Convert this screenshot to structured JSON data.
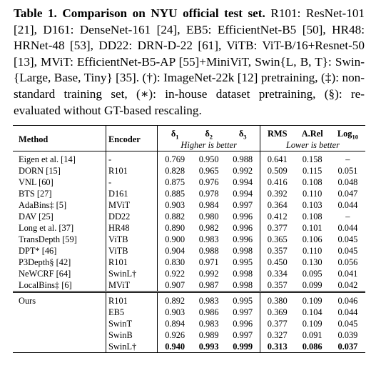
{
  "caption": {
    "label": "Table 1.",
    "title": "Comparison on NYU official test set.",
    "text": "R101: ResNet-101 [21], D161: DenseNet-161 [24], EB5: EfficientNet-B5 [50], HR48: HRNet-48 [53], DD22: DRN-D-22 [61], ViTB: ViT-B/16+Resnet-50 [13], MViT: EfficientNet-B5-AP [55]+MiniViT, Swin{L, B, T}: Swin-{Large, Base, Tiny} [35]. (†): ImageNet-22k [12] pretraining, (‡): non-standard training set, (∗): in-house dataset pretraining, (§): re-evaluated without GT-based rescaling."
  },
  "table": {
    "headers": {
      "method": "Method",
      "encoder": "Encoder",
      "d1": "δ1",
      "d2": "δ2",
      "d3": "δ3",
      "rms": "RMS",
      "arel": "A.Rel",
      "log10": "Log10",
      "higher": "Higher is better",
      "lower": "Lower is better"
    },
    "rows": [
      {
        "method": "Eigen et al. [14]",
        "encoder": "-",
        "d1": "0.769",
        "d2": "0.950",
        "d3": "0.988",
        "rms": "0.641",
        "arel": "0.158",
        "log10": "–"
      },
      {
        "method": "DORN [15]",
        "encoder": "R101",
        "d1": "0.828",
        "d2": "0.965",
        "d3": "0.992",
        "rms": "0.509",
        "arel": "0.115",
        "log10": "0.051"
      },
      {
        "method": "VNL [60]",
        "encoder": "-",
        "d1": "0.875",
        "d2": "0.976",
        "d3": "0.994",
        "rms": "0.416",
        "arel": "0.108",
        "log10": "0.048"
      },
      {
        "method": "BTS [27]",
        "encoder": "D161",
        "d1": "0.885",
        "d2": "0.978",
        "d3": "0.994",
        "rms": "0.392",
        "arel": "0.110",
        "log10": "0.047"
      },
      {
        "method": "AdaBins‡ [5]",
        "encoder": "MViT",
        "d1": "0.903",
        "d2": "0.984",
        "d3": "0.997",
        "rms": "0.364",
        "arel": "0.103",
        "log10": "0.044"
      },
      {
        "method": "DAV [25]",
        "encoder": "DD22",
        "d1": "0.882",
        "d2": "0.980",
        "d3": "0.996",
        "rms": "0.412",
        "arel": "0.108",
        "log10": "–"
      },
      {
        "method": "Long et al. [37]",
        "encoder": "HR48",
        "d1": "0.890",
        "d2": "0.982",
        "d3": "0.996",
        "rms": "0.377",
        "arel": "0.101",
        "log10": "0.044"
      },
      {
        "method": "TransDepth [59]",
        "encoder": "ViTB",
        "d1": "0.900",
        "d2": "0.983",
        "d3": "0.996",
        "rms": "0.365",
        "arel": "0.106",
        "log10": "0.045"
      },
      {
        "method": "DPT* [46]",
        "encoder": "ViTB",
        "d1": "0.904",
        "d2": "0.988",
        "d3": "0.998",
        "rms": "0.357",
        "arel": "0.110",
        "log10": "0.045"
      },
      {
        "method": "P3Depth§ [42]",
        "encoder": "R101",
        "d1": "0.830",
        "d2": "0.971",
        "d3": "0.995",
        "rms": "0.450",
        "arel": "0.130",
        "log10": "0.056"
      },
      {
        "method": "NeWCRF [64]",
        "encoder": "SwinL†",
        "d1": "0.922",
        "d2": "0.992",
        "d3": "0.998",
        "rms": "0.334",
        "arel": "0.095",
        "log10": "0.041"
      },
      {
        "method": "LocalBins‡ [6]",
        "encoder": "MViT",
        "d1": "0.907",
        "d2": "0.987",
        "d3": "0.998",
        "rms": "0.357",
        "arel": "0.099",
        "log10": "0.042"
      }
    ],
    "ours": [
      {
        "method": "Ours",
        "encoder": "R101",
        "d1": "0.892",
        "d2": "0.983",
        "d3": "0.995",
        "rms": "0.380",
        "arel": "0.109",
        "log10": "0.046"
      },
      {
        "method": "",
        "encoder": "EB5",
        "d1": "0.903",
        "d2": "0.986",
        "d3": "0.997",
        "rms": "0.369",
        "arel": "0.104",
        "log10": "0.044"
      },
      {
        "method": "",
        "encoder": "SwinT",
        "d1": "0.894",
        "d2": "0.983",
        "d3": "0.996",
        "rms": "0.377",
        "arel": "0.109",
        "log10": "0.045"
      },
      {
        "method": "",
        "encoder": "SwinB",
        "d1": "0.926",
        "d2": "0.989",
        "d3": "0.997",
        "rms": "0.327",
        "arel": "0.091",
        "log10": "0.039"
      },
      {
        "method": "",
        "encoder": "SwinL†",
        "d1": "0.940",
        "d2": "0.993",
        "d3": "0.999",
        "rms": "0.313",
        "arel": "0.086",
        "log10": "0.037"
      }
    ]
  }
}
